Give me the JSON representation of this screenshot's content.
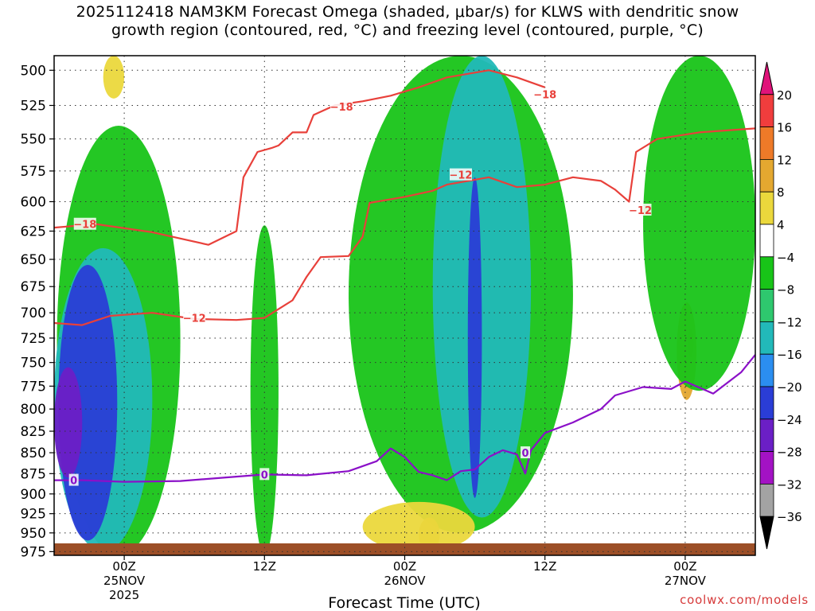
{
  "title": {
    "line1": "2025112418 NAM3KM Forecast Omega (shaded, μbar/s) for KLWS with dendritic snow",
    "line2": "growth region (contoured, red, °C) and freezing level (contoured, purple, °C)"
  },
  "watermark": "coolwx.com/models",
  "colors": {
    "ground": "#9c4f27",
    "dgz_contour": "#e8403a",
    "freezing_contour": "#8b10c8",
    "grid": "#333333"
  },
  "chart_data": {
    "type": "heatmap",
    "xlabel": "Forecast Time (UTC)",
    "ylabel": "",
    "y_scale": "pressure (inverted, log)",
    "ylim": [
      980,
      490
    ],
    "x_range_hours": [
      -5,
      45
    ],
    "y_ticks": [
      500,
      525,
      550,
      575,
      600,
      625,
      650,
      675,
      700,
      725,
      750,
      775,
      800,
      825,
      850,
      875,
      900,
      925,
      950,
      975
    ],
    "x_ticks": [
      {
        "hour": 0,
        "label": "00Z",
        "sub": "25NOV",
        "sub2": "2025"
      },
      {
        "hour": 10,
        "label": "12Z",
        "sub": "",
        "sub2": ""
      },
      {
        "hour": 20,
        "label": "00Z",
        "sub": "26NOV",
        "sub2": ""
      },
      {
        "hour": 30,
        "label": "12Z",
        "sub": "",
        "sub2": ""
      },
      {
        "hour": 40,
        "label": "00Z",
        "sub": "27NOV",
        "sub2": ""
      }
    ],
    "colorbar": {
      "labels": [
        "20",
        "16",
        "12",
        "8",
        "4",
        "−4",
        "−8",
        "−12",
        "−16",
        "−20",
        "−24",
        "−28",
        "−32",
        "−36"
      ],
      "bins": [
        {
          "lo": 20,
          "hi": null,
          "color": "#e0137a"
        },
        {
          "lo": 16,
          "hi": 20,
          "color": "#f03d3d"
        },
        {
          "lo": 12,
          "hi": 16,
          "color": "#ee7a28"
        },
        {
          "lo": 8,
          "hi": 12,
          "color": "#e4a830"
        },
        {
          "lo": 4,
          "hi": 8,
          "color": "#ebd83c"
        },
        {
          "lo": -4,
          "hi": 4,
          "color": "#ffffff"
        },
        {
          "lo": -8,
          "hi": -4,
          "color": "#18c418"
        },
        {
          "lo": -12,
          "hi": -8,
          "color": "#2ec86e"
        },
        {
          "lo": -16,
          "hi": -12,
          "color": "#22b9b9"
        },
        {
          "lo": -20,
          "hi": -16,
          "color": "#2b8ef0"
        },
        {
          "lo": -24,
          "hi": -20,
          "color": "#2a3dd6"
        },
        {
          "lo": -28,
          "hi": -24,
          "color": "#6b1fc6"
        },
        {
          "lo": -32,
          "hi": -28,
          "color": "#a312c4"
        },
        {
          "lo": -36,
          "hi": -32,
          "color": "#a3a3a3"
        },
        {
          "lo": null,
          "hi": -36,
          "color": "#000000"
        }
      ]
    },
    "omega_regions": [
      {
        "label": "green band early",
        "level": -6,
        "t": [
          -4.8,
          4
        ],
        "p": [
          540,
          980
        ]
      },
      {
        "label": "cyan early",
        "level": -14,
        "t": [
          -5,
          2
        ],
        "p": [
          640,
          975
        ]
      },
      {
        "label": "blue early",
        "level": -22,
        "t": [
          -4.7,
          -0.5
        ],
        "p": [
          655,
          960
        ]
      },
      {
        "label": "purple early",
        "level": -26,
        "t": [
          -5,
          -3
        ],
        "p": [
          755,
          880
        ]
      },
      {
        "label": "yellow 00Z",
        "level": 5,
        "t": [
          -1.5,
          0
        ],
        "p": [
          490,
          520
        ]
      },
      {
        "label": "green 12Z",
        "level": -6,
        "t": [
          9,
          11
        ],
        "p": [
          620,
          980
        ]
      },
      {
        "label": "green 26NOV",
        "level": -6,
        "t": [
          16,
          32
        ],
        "p": [
          490,
          950
        ]
      },
      {
        "label": "cyan 26NOV",
        "level": -14,
        "t": [
          22,
          29
        ],
        "p": [
          490,
          930
        ]
      },
      {
        "label": "blue 26NOV",
        "level": -22,
        "t": [
          24.5,
          25.5
        ],
        "p": [
          580,
          905
        ]
      },
      {
        "label": "orange 26NOV",
        "level": 10,
        "t": [
          21,
          22.5
        ],
        "p": [
          930,
          975
        ]
      },
      {
        "label": "yellow near 26NOV",
        "level": 5,
        "t": [
          17,
          25
        ],
        "p": [
          910,
          975
        ]
      },
      {
        "label": "red 27NOV",
        "level": 18,
        "t": [
          40.2,
          40.6
        ],
        "p": [
          715,
          745
        ]
      },
      {
        "label": "orange 27NOV",
        "level": 10,
        "t": [
          39.4,
          40.8
        ],
        "p": [
          690,
          790
        ]
      },
      {
        "label": "green late",
        "level": -6,
        "t": [
          37,
          45
        ],
        "p": [
          490,
          780
        ]
      }
    ],
    "dendritic_contours": [
      {
        "label": "−18",
        "points": [
          [
            -5,
            622
          ],
          [
            -2,
            619
          ],
          [
            2,
            626
          ],
          [
            6,
            637
          ],
          [
            8,
            625
          ],
          [
            8.5,
            580
          ],
          [
            9.5,
            560
          ],
          [
            10.5,
            557
          ],
          [
            11,
            555
          ],
          [
            12,
            545
          ],
          [
            13,
            545
          ],
          [
            13.5,
            532
          ],
          [
            15,
            525
          ],
          [
            17,
            522
          ],
          [
            19,
            518
          ],
          [
            21,
            512
          ],
          [
            23,
            505
          ],
          [
            26,
            500
          ],
          [
            28,
            505
          ],
          [
            30,
            512
          ]
        ]
      },
      {
        "label": "−12",
        "points": [
          [
            -5,
            710
          ],
          [
            -3,
            712
          ],
          [
            -1,
            703
          ],
          [
            2,
            700
          ],
          [
            5,
            706
          ],
          [
            8,
            707
          ],
          [
            10,
            705
          ],
          [
            12,
            688
          ],
          [
            13,
            666
          ],
          [
            14,
            648
          ],
          [
            16,
            647
          ],
          [
            17,
            630
          ],
          [
            17.5,
            601
          ],
          [
            20,
            596
          ],
          [
            22,
            591
          ],
          [
            23,
            586
          ],
          [
            25,
            582
          ],
          [
            26,
            580
          ],
          [
            28,
            588
          ],
          [
            30,
            586
          ],
          [
            32,
            580
          ],
          [
            34,
            583
          ],
          [
            35,
            590
          ],
          [
            36,
            600
          ],
          [
            36.5,
            560
          ],
          [
            38,
            550
          ],
          [
            41,
            545
          ],
          [
            45,
            542
          ]
        ]
      }
    ],
    "freezing_contour": {
      "label": "0",
      "points": [
        [
          -5,
          883
        ],
        [
          -3,
          883
        ],
        [
          0,
          885
        ],
        [
          4,
          884
        ],
        [
          7,
          880
        ],
        [
          10,
          876
        ],
        [
          13,
          877
        ],
        [
          16,
          872
        ],
        [
          18,
          860
        ],
        [
          19,
          845
        ],
        [
          20,
          855
        ],
        [
          21,
          873
        ],
        [
          22,
          877
        ],
        [
          23,
          883
        ],
        [
          24,
          872
        ],
        [
          25,
          870
        ],
        [
          26,
          855
        ],
        [
          27,
          847
        ],
        [
          28,
          852
        ],
        [
          28.6,
          875
        ],
        [
          29,
          847
        ],
        [
          30,
          827
        ],
        [
          32,
          815
        ],
        [
          34,
          800
        ],
        [
          35,
          785
        ],
        [
          37,
          776
        ],
        [
          39,
          778
        ],
        [
          40,
          770
        ],
        [
          42,
          783
        ],
        [
          44,
          760
        ],
        [
          45,
          742
        ]
      ]
    },
    "contour_labels": [
      {
        "text": "−18",
        "t": -2.8,
        "p": 619,
        "contour": "dgz"
      },
      {
        "text": "−18",
        "t": 15.5,
        "p": 526,
        "contour": "dgz"
      },
      {
        "text": "−18",
        "t": 30,
        "p": 517,
        "contour": "dgz"
      },
      {
        "text": "−12",
        "t": 5,
        "p": 705,
        "contour": "dgz"
      },
      {
        "text": "−12",
        "t": 24,
        "p": 578,
        "contour": "dgz"
      },
      {
        "text": "−12",
        "t": 36.8,
        "p": 607,
        "contour": "dgz"
      },
      {
        "text": "0",
        "t": -3.6,
        "p": 883,
        "contour": "freezing"
      },
      {
        "text": "0",
        "t": 10,
        "p": 876,
        "contour": "freezing"
      },
      {
        "text": "0",
        "t": 28.6,
        "p": 850,
        "contour": "freezing"
      }
    ]
  }
}
